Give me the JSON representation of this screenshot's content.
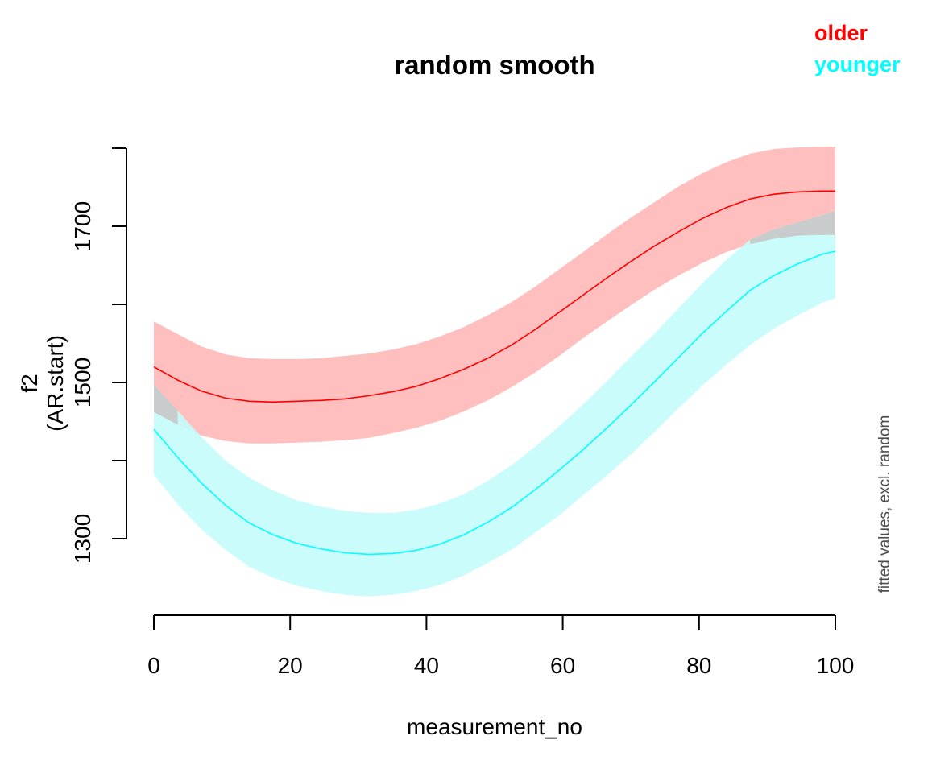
{
  "chart_data": {
    "type": "line",
    "title": "random smooth",
    "xlabel": "measurement_no",
    "ylabel_line1": "f2",
    "ylabel_line2": "(AR.start)",
    "side_note": "fitted values, excl. random",
    "xlim": [
      0,
      100
    ],
    "ylim": [
      1250,
      1750
    ],
    "x_ticks": [
      0,
      20,
      40,
      60,
      80,
      100
    ],
    "y_ticks": [
      1300,
      1400,
      1500,
      1600,
      1700,
      1800
    ],
    "y_tick_labels": [
      "1300",
      "",
      "1500",
      "",
      "1700",
      ""
    ],
    "x": [
      0,
      3.5,
      7,
      10.5,
      14,
      17.5,
      21,
      24.5,
      28,
      31.5,
      35,
      38.5,
      42,
      45.5,
      49,
      52.5,
      56,
      59.5,
      63,
      66.5,
      70,
      73.5,
      77,
      80.5,
      84,
      87.5,
      91,
      94.5,
      98,
      100
    ],
    "legend_position": "top-right",
    "series": [
      {
        "name": "older",
        "color": "#ff0000",
        "band_color": "#ffbfbf",
        "fit": [
          1520,
          1503,
          1489,
          1480,
          1476,
          1475,
          1476,
          1477,
          1479,
          1483,
          1488,
          1495,
          1505,
          1517,
          1531,
          1548,
          1568,
          1590,
          1612,
          1634,
          1655,
          1675,
          1693,
          1710,
          1724,
          1735,
          1741,
          1744,
          1745,
          1745
        ],
        "upper": [
          1578,
          1562,
          1546,
          1536,
          1531,
          1530,
          1530,
          1531,
          1534,
          1537,
          1542,
          1549,
          1559,
          1571,
          1586,
          1603,
          1623,
          1645,
          1667,
          1690,
          1711,
          1731,
          1751,
          1768,
          1782,
          1793,
          1799,
          1801,
          1802,
          1802
        ],
        "lower": [
          1462,
          1446,
          1432,
          1425,
          1422,
          1422,
          1423,
          1424,
          1426,
          1429,
          1435,
          1442,
          1451,
          1463,
          1477,
          1494,
          1513,
          1534,
          1557,
          1578,
          1599,
          1619,
          1637,
          1653,
          1667,
          1677,
          1684,
          1688,
          1689,
          1689
        ]
      },
      {
        "name": "younger",
        "color": "#00ffff",
        "band_color": "#c4fcfc",
        "fit": [
          1440,
          1404,
          1371,
          1343,
          1320,
          1305,
          1294,
          1287,
          1282,
          1280,
          1281,
          1285,
          1293,
          1305,
          1321,
          1340,
          1363,
          1388,
          1414,
          1442,
          1471,
          1501,
          1532,
          1563,
          1591,
          1618,
          1637,
          1652,
          1664,
          1668
        ],
        "upper": [
          1497,
          1464,
          1430,
          1400,
          1378,
          1362,
          1349,
          1341,
          1336,
          1333,
          1333,
          1337,
          1345,
          1357,
          1374,
          1394,
          1418,
          1444,
          1472,
          1502,
          1533,
          1563,
          1595,
          1627,
          1657,
          1683,
          1696,
          1705,
          1714,
          1720
        ],
        "lower": [
          1382,
          1344,
          1312,
          1286,
          1264,
          1250,
          1240,
          1233,
          1228,
          1226,
          1228,
          1233,
          1241,
          1253,
          1269,
          1286,
          1308,
          1330,
          1356,
          1381,
          1408,
          1437,
          1467,
          1496,
          1523,
          1548,
          1569,
          1586,
          1602,
          1608
        ]
      }
    ]
  }
}
